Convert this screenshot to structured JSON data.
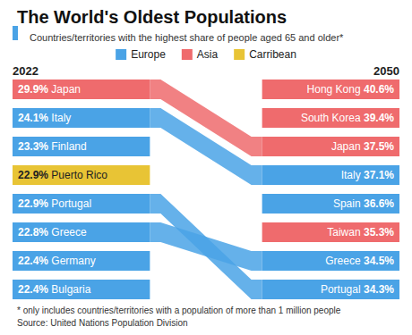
{
  "chart_data": {
    "type": "ranking",
    "title": "The World's Oldest Populations",
    "subtitle": "Countries/territories with the highest share of people aged 65 and older*",
    "series": [
      {
        "name": "Europe",
        "color": "#4aa3e6"
      },
      {
        "name": "Asia",
        "color": "#ef6b6d"
      },
      {
        "name": "Carribean",
        "color": "#e8c435"
      }
    ],
    "columns": [
      {
        "label": "2022",
        "categories": [
          "Japan",
          "Italy",
          "Finland",
          "Puerto Rico",
          "Portugal",
          "Greece",
          "Germany",
          "Bulgaria"
        ],
        "values": [
          29.9,
          24.1,
          23.3,
          22.9,
          22.9,
          22.8,
          22.4,
          22.4
        ],
        "value_labels": [
          "29.9%",
          "24.1%",
          "23.3%",
          "22.9%",
          "22.9%",
          "22.8%",
          "22.4%",
          "22.4%"
        ],
        "groups": [
          "Asia",
          "Europe",
          "Europe",
          "Carribean",
          "Europe",
          "Europe",
          "Europe",
          "Europe"
        ]
      },
      {
        "label": "2050",
        "categories": [
          "Hong Kong",
          "South Korea",
          "Japan",
          "Italy",
          "Spain",
          "Taiwan",
          "Greece",
          "Portugal"
        ],
        "values": [
          40.6,
          39.4,
          37.5,
          37.1,
          36.6,
          35.3,
          34.5,
          34.3
        ],
        "value_labels": [
          "40.6%",
          "39.4%",
          "37.5%",
          "37.1%",
          "36.6%",
          "35.3%",
          "34.5%",
          "34.3%"
        ],
        "groups": [
          "Asia",
          "Asia",
          "Asia",
          "Europe",
          "Europe",
          "Asia",
          "Europe",
          "Europe"
        ]
      }
    ],
    "footnote": "* only includes countries/territories with a population of more than 1 million people",
    "source": "Source: United Nations Population Division"
  }
}
